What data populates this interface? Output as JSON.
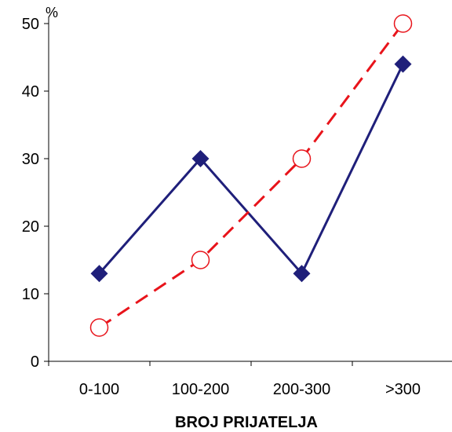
{
  "chart_data": {
    "type": "line",
    "categories": [
      "0-100",
      "100-200",
      "200-300",
      ">300"
    ],
    "series": [
      {
        "values": [
          13,
          30,
          13,
          44
        ],
        "color": "#1F1F7A",
        "marker": "diamond",
        "line_style": "solid"
      },
      {
        "values": [
          5,
          15,
          30,
          50
        ],
        "color": "#E8141B",
        "marker": "circle-open",
        "line_style": "dashed"
      }
    ],
    "title": "",
    "xlabel": "BROJ PRIJATELJA",
    "ylabel": "%",
    "ylim": [
      0,
      50
    ],
    "yticks": [
      0,
      10,
      20,
      30,
      40,
      50
    ],
    "grid": false,
    "legend": "none"
  }
}
